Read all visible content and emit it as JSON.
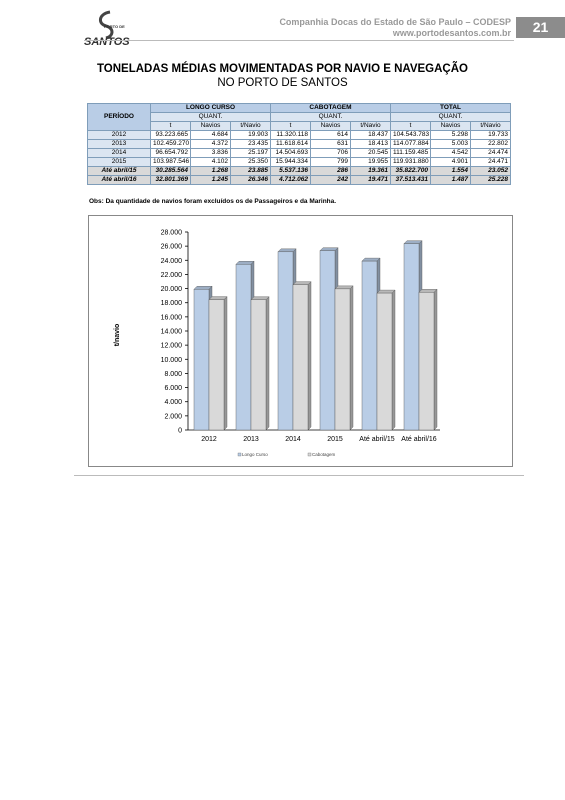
{
  "header": {
    "company": "Companhia Docas do Estado de São Paulo – CODESP",
    "url": "www.portodesantos.com.br",
    "page": "21",
    "logo_top": "PORTO DE",
    "logo_main": "SANTOS"
  },
  "title": "TONELADAS MÉDIAS MOVIMENTADAS POR NAVIO E NAVEGAÇÃO",
  "subtitle": "NO PORTO DE SANTOS",
  "table": {
    "period": "PERÍODO",
    "groups": [
      "LONGO CURSO",
      "CABOTAGEM",
      "TOTAL"
    ],
    "quant": "QUANT.",
    "subcolumns": [
      "t",
      "Navios",
      "t/Navio"
    ],
    "rows": [
      [
        "2012",
        "93.223.665",
        "4.684",
        "19.903",
        "11.320.118",
        "614",
        "18.437",
        "104.543.783",
        "5.298",
        "19.733"
      ],
      [
        "2013",
        "102.459.270",
        "4.372",
        "23.435",
        "11.618.614",
        "631",
        "18.413",
        "114.077.884",
        "5.003",
        "22.802"
      ],
      [
        "2014",
        "96.654.792",
        "3.836",
        "25.197",
        "14.504.693",
        "706",
        "20.545",
        "111.159.485",
        "4.542",
        "24.474"
      ],
      [
        "2015",
        "103.987.546",
        "4.102",
        "25.350",
        "15.944.334",
        "799",
        "19.955",
        "119.931.880",
        "4.901",
        "24.471"
      ],
      [
        "Até abril/15",
        "30.285.564",
        "1.268",
        "23.885",
        "5.537.136",
        "286",
        "19.361",
        "35.822.700",
        "1.554",
        "23.052"
      ],
      [
        "Até abril/16",
        "32.801.369",
        "1.245",
        "26.346",
        "4.712.062",
        "242",
        "19.471",
        "37.513.431",
        "1.487",
        "25.228"
      ]
    ]
  },
  "note": "Obs: Da quantidade de navios foram excluídos os de Passageiros e da Marinha.",
  "chart_data": {
    "type": "bar",
    "ylabel": "t/navio",
    "categories": [
      "2012",
      "2013",
      "2014",
      "2015",
      "Até abril/15",
      "Até abril/16"
    ],
    "series": [
      {
        "name": "Longo Curso",
        "color": "#b9cde6",
        "values": [
          19903,
          23435,
          25197,
          25350,
          23885,
          26346
        ]
      },
      {
        "name": "Cabotagem",
        "color": "#d9d9d9",
        "values": [
          18437,
          18413,
          20545,
          19955,
          19361,
          19471
        ]
      }
    ],
    "ylim": [
      0,
      28000
    ],
    "yticks": [
      0,
      {
        "value": 2000,
        "label": "2.000"
      },
      {
        "value": 4000,
        "label": "4.000"
      },
      {
        "value": 6000,
        "label": "6.000"
      },
      {
        "value": 8000,
        "label": "8.000"
      },
      {
        "value": 10000,
        "label": "10.000"
      },
      {
        "value": 12000,
        "label": "12.000"
      },
      {
        "value": 14000,
        "label": "14.000"
      },
      {
        "value": 16000,
        "label": "16.000"
      },
      {
        "value": 18000,
        "label": "18.000"
      },
      {
        "value": 20000,
        "label": "20.000"
      },
      {
        "value": 22000,
        "label": "22.000"
      },
      {
        "value": 24000,
        "label": "24.000"
      },
      {
        "value": 26000,
        "label": "26.000"
      },
      {
        "value": 28000,
        "label": "28.000"
      }
    ],
    "grid": false,
    "legend": "bottom"
  }
}
